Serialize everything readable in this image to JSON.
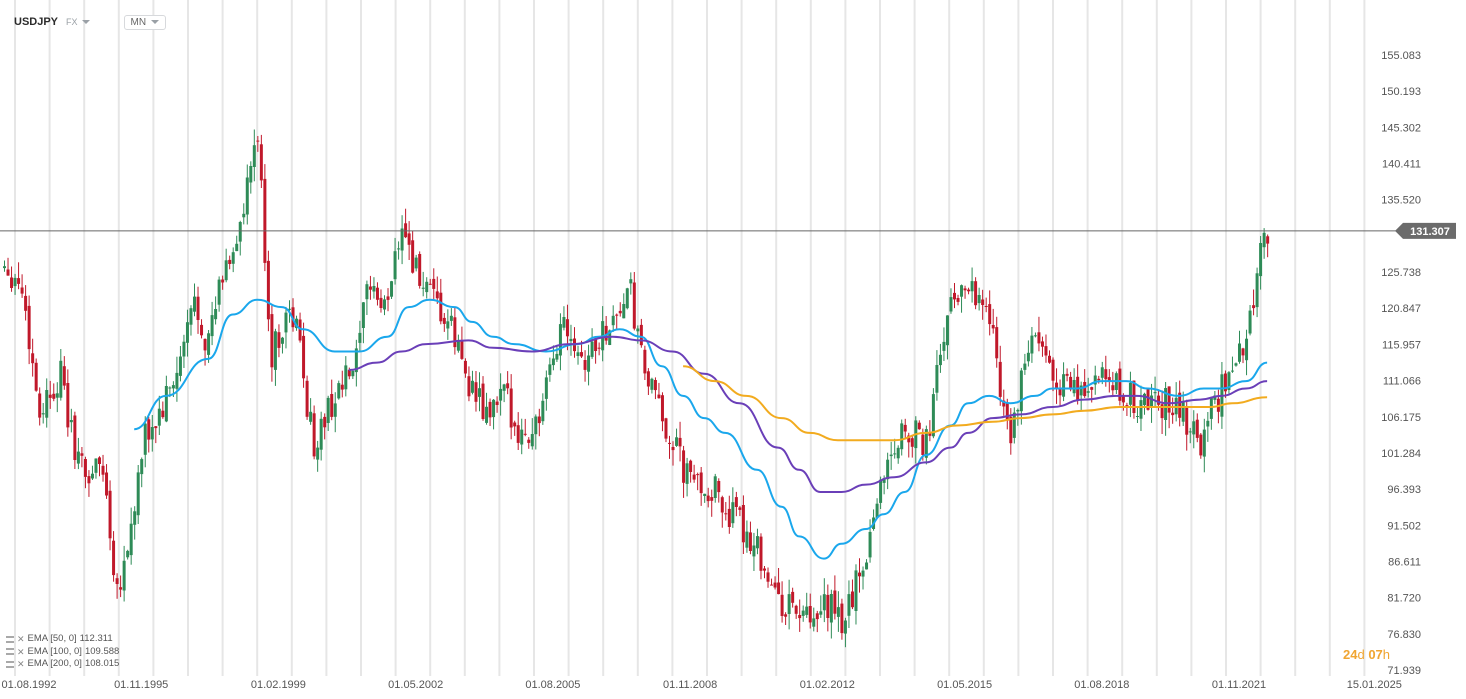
{
  "toolbar": {
    "symbol": "USDJPY",
    "market": "FX",
    "timeframe": "MN"
  },
  "indicators": [
    {
      "label": "EMA [50,  0]",
      "value": "112.311",
      "color": "#1aa7ec"
    },
    {
      "label": "EMA [100,  0]",
      "value": "109.588",
      "color": "#6a3fb8"
    },
    {
      "label": "EMA [200,  0]",
      "value": "108.015",
      "color": "#f2ab1f"
    }
  ],
  "timer": {
    "days": "24",
    "d": "d",
    "hours": "07",
    "h": "h"
  },
  "current_price": "131.307",
  "colors": {
    "up": "#2e8b57",
    "down": "#c0182a",
    "price_line": "#666666",
    "grid": "#e6e6e6",
    "label_bg": "#6b6b6b"
  },
  "chart_data": {
    "type": "candlestick",
    "x_ticks": [
      "01.08.1992",
      "01.11.1995",
      "01.02.1999",
      "01.05.2002",
      "01.08.2005",
      "01.11.2008",
      "01.02.2012",
      "01.05.2015",
      "01.08.2018",
      "01.11.2021",
      "15.01.2025"
    ],
    "y_ticks": [
      "155.083",
      "150.193",
      "145.302",
      "140.411",
      "135.520",
      "131.307",
      "125.738",
      "120.847",
      "115.957",
      "111.066",
      "106.175",
      "101.284",
      "96.393",
      "91.502",
      "86.611",
      "81.720",
      "76.830",
      "71.939"
    ],
    "y_range": [
      71.939,
      155.083
    ],
    "grid": true,
    "price_series": [
      [
        "1992-08",
        127
      ],
      [
        "1993-01",
        124
      ],
      [
        "1993-06",
        107
      ],
      [
        "1993-12",
        112
      ],
      [
        "1994-03",
        104
      ],
      [
        "1994-07",
        98
      ],
      [
        "1994-12",
        100
      ],
      [
        "1995-04",
        83
      ],
      [
        "1995-07",
        88
      ],
      [
        "1995-12",
        103
      ],
      [
        "1996-05",
        107
      ],
      [
        "1996-10",
        113
      ],
      [
        "1997-02",
        122
      ],
      [
        "1997-06",
        116
      ],
      [
        "1997-10",
        125
      ],
      [
        "1998-04",
        133
      ],
      [
        "1998-08",
        145
      ],
      [
        "1998-12",
        114
      ],
      [
        "1999-04",
        120
      ],
      [
        "1999-07",
        119
      ],
      [
        "1999-12",
        102
      ],
      [
        "2000-05",
        108
      ],
      [
        "2000-12",
        113
      ],
      [
        "2001-04",
        125
      ],
      [
        "2001-08",
        120
      ],
      [
        "2002-01",
        133
      ],
      [
        "2002-05",
        126
      ],
      [
        "2002-09",
        122
      ],
      [
        "2003-03",
        118
      ],
      [
        "2003-09",
        110
      ],
      [
        "2004-01",
        106
      ],
      [
        "2004-06",
        109
      ],
      [
        "2004-12",
        103
      ],
      [
        "2005-05",
        107
      ],
      [
        "2005-11",
        120
      ],
      [
        "2006-05",
        114
      ],
      [
        "2006-11",
        118
      ],
      [
        "2007-06",
        123
      ],
      [
        "2007-09",
        114
      ],
      [
        "2008-02",
        107
      ],
      [
        "2008-05",
        104
      ],
      [
        "2008-10",
        98
      ],
      [
        "2009-02",
        97
      ],
      [
        "2009-06",
        96
      ],
      [
        "2009-12",
        92
      ],
      [
        "2010-06",
        89
      ],
      [
        "2010-12",
        81
      ],
      [
        "2011-06",
        80
      ],
      [
        "2011-10",
        77
      ],
      [
        "2012-02",
        81
      ],
      [
        "2012-06",
        78
      ],
      [
        "2012-12",
        86
      ],
      [
        "2013-06",
        99
      ],
      [
        "2013-12",
        105
      ],
      [
        "2014-06",
        102
      ],
      [
        "2014-12",
        120
      ],
      [
        "2015-06",
        125
      ],
      [
        "2015-12",
        120
      ],
      [
        "2016-06",
        103
      ],
      [
        "2016-12",
        117
      ],
      [
        "2017-06",
        112
      ],
      [
        "2018-01",
        109
      ],
      [
        "2018-06",
        111
      ],
      [
        "2018-12",
        110
      ],
      [
        "2019-06",
        108
      ],
      [
        "2020-03",
        108
      ],
      [
        "2020-06",
        107
      ],
      [
        "2020-12",
        103
      ],
      [
        "2021-06",
        110
      ],
      [
        "2021-12",
        115
      ],
      [
        "2022-03",
        122
      ],
      [
        "2022-05",
        130
      ],
      [
        "2022-07",
        131.307
      ]
    ],
    "series": [
      {
        "name": "EMA [50,  0]",
        "points": [
          [
            "1995-09",
            104.5
          ],
          [
            "1996-06",
            109
          ],
          [
            "1997-06",
            114
          ],
          [
            "1998-01",
            120
          ],
          [
            "1998-08",
            122
          ],
          [
            "1999-03",
            121
          ],
          [
            "1999-09",
            118
          ],
          [
            "2000-06",
            115
          ],
          [
            "2001-01",
            115
          ],
          [
            "2001-09",
            117
          ],
          [
            "2002-03",
            121
          ],
          [
            "2002-09",
            122
          ],
          [
            "2003-04",
            121
          ],
          [
            "2003-09",
            119
          ],
          [
            "2004-03",
            117
          ],
          [
            "2004-09",
            116
          ],
          [
            "2005-06",
            115
          ],
          [
            "2006-03",
            116
          ],
          [
            "2006-09",
            117
          ],
          [
            "2007-03",
            118
          ],
          [
            "2007-09",
            117
          ],
          [
            "2008-03",
            113
          ],
          [
            "2008-09",
            109
          ],
          [
            "2009-03",
            106
          ],
          [
            "2009-09",
            104
          ],
          [
            "2010-06",
            99
          ],
          [
            "2011-01",
            94
          ],
          [
            "2011-06",
            90
          ],
          [
            "2012-01",
            87
          ],
          [
            "2012-06",
            89
          ],
          [
            "2013-01",
            91
          ],
          [
            "2013-06",
            93
          ],
          [
            "2013-12",
            96
          ],
          [
            "2014-06",
            101
          ],
          [
            "2015-01",
            105
          ],
          [
            "2015-06",
            108
          ],
          [
            "2015-12",
            109
          ],
          [
            "2016-06",
            108
          ],
          [
            "2017-01",
            109
          ],
          [
            "2017-06",
            110
          ],
          [
            "2018-01",
            110
          ],
          [
            "2018-08",
            111
          ],
          [
            "2019-03",
            111
          ],
          [
            "2019-09",
            110
          ],
          [
            "2020-06",
            109
          ],
          [
            "2021-01",
            110
          ],
          [
            "2021-06",
            110
          ],
          [
            "2022-01",
            111
          ],
          [
            "2022-07",
            113.5
          ]
        ]
      },
      {
        "name": "EMA [100,  0]",
        "points": [
          [
            "2000-10",
            112.5
          ],
          [
            "2001-06",
            113.5
          ],
          [
            "2002-01",
            115
          ],
          [
            "2002-08",
            116
          ],
          [
            "2003-08",
            116.5
          ],
          [
            "2004-03",
            115.5
          ],
          [
            "2005-02",
            115
          ],
          [
            "2006-01",
            116
          ],
          [
            "2007-01",
            117
          ],
          [
            "2007-09",
            116.5
          ],
          [
            "2008-06",
            115
          ],
          [
            "2009-03",
            112
          ],
          [
            "2010-01",
            108
          ],
          [
            "2010-12",
            102
          ],
          [
            "2011-06",
            99
          ],
          [
            "2011-12",
            96
          ],
          [
            "2012-06",
            96
          ],
          [
            "2013-01",
            97
          ],
          [
            "2013-09",
            98
          ],
          [
            "2014-06",
            100
          ],
          [
            "2015-01",
            102
          ],
          [
            "2015-06",
            104
          ],
          [
            "2016-01",
            106
          ],
          [
            "2016-09",
            106.5
          ],
          [
            "2017-06",
            107.5
          ],
          [
            "2018-03",
            108.5
          ],
          [
            "2018-12",
            109
          ],
          [
            "2019-06",
            109
          ],
          [
            "2020-03",
            108
          ],
          [
            "2020-12",
            108.5
          ],
          [
            "2021-06",
            109
          ],
          [
            "2022-01",
            110
          ],
          [
            "2022-07",
            111
          ]
        ]
      },
      {
        "name": "EMA [200,  0]",
        "points": [
          [
            "2008-09",
            113
          ],
          [
            "2009-06",
            111
          ],
          [
            "2010-03",
            109
          ],
          [
            "2011-01",
            106
          ],
          [
            "2011-09",
            104
          ],
          [
            "2012-05",
            103
          ],
          [
            "2013-01",
            103
          ],
          [
            "2013-09",
            103
          ],
          [
            "2014-06",
            104
          ],
          [
            "2015-03",
            105
          ],
          [
            "2016-01",
            105.5
          ],
          [
            "2016-09",
            106
          ],
          [
            "2017-06",
            106.5
          ],
          [
            "2018-03",
            107
          ],
          [
            "2019-01",
            107.5
          ],
          [
            "2019-09",
            107.5
          ],
          [
            "2020-06",
            107.5
          ],
          [
            "2021-03",
            107.5
          ],
          [
            "2021-09",
            108
          ],
          [
            "2022-07",
            108.8
          ]
        ]
      }
    ]
  }
}
